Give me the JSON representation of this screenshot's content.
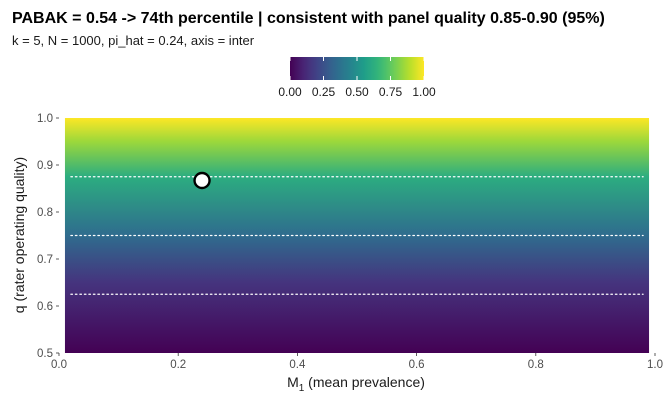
{
  "chart_data": {
    "type": "heatmap",
    "title": "PABAK = 0.54 -> 74th percentile  |  consistent with panel quality 0.85-0.90 (95%)",
    "subtitle": "k = 5, N = 1000, pi_hat = 0.24, axis = inter",
    "xlabel_main": "M",
    "xlabel_sub": "1",
    "xlabel_rest": " (mean prevalence)",
    "ylabel": "q (rater operating quality)",
    "xlim": [
      0.0,
      1.0
    ],
    "ylim": [
      0.5,
      1.0
    ],
    "x_ticks": [
      {
        "value": 0.0,
        "label": "0.0"
      },
      {
        "value": 0.2,
        "label": "0.2"
      },
      {
        "value": 0.4,
        "label": "0.4"
      },
      {
        "value": 0.6,
        "label": "0.6"
      },
      {
        "value": 0.8,
        "label": "0.8"
      },
      {
        "value": 1.0,
        "label": "1.0"
      }
    ],
    "y_ticks": [
      {
        "value": 0.5,
        "label": "0.5"
      },
      {
        "value": 0.6,
        "label": "0.6"
      },
      {
        "value": 0.7,
        "label": "0.7"
      },
      {
        "value": 0.8,
        "label": "0.8"
      },
      {
        "value": 0.9,
        "label": "0.9"
      },
      {
        "value": 1.0,
        "label": "1.0"
      }
    ],
    "heat_field": {
      "x_range": [
        0.01,
        0.99
      ],
      "y_range": [
        0.5,
        1.0
      ],
      "varies_along": "y",
      "value_at_y": [
        {
          "y": 0.5,
          "v": 0.0
        },
        {
          "y": 0.65,
          "v": 0.15
        },
        {
          "y": 0.75,
          "v": 0.35
        },
        {
          "y": 0.875,
          "v": 0.62
        },
        {
          "y": 0.95,
          "v": 0.85
        },
        {
          "y": 1.0,
          "v": 1.0
        }
      ]
    },
    "reference_lines_y": [
      0.625,
      0.75,
      0.875
    ],
    "reference_line_x_range": [
      0.02,
      0.98
    ],
    "point": {
      "x": 0.24,
      "y": 0.867
    },
    "colorbar": {
      "colormap": "viridis",
      "min": 0.0,
      "max": 1.0,
      "ticks": [
        {
          "value": 0.0,
          "label": "0.00"
        },
        {
          "value": 0.25,
          "label": "0.25"
        },
        {
          "value": 0.5,
          "label": "0.50"
        },
        {
          "value": 0.75,
          "label": "0.75"
        },
        {
          "value": 1.0,
          "label": "1.00"
        }
      ]
    },
    "grid": false,
    "legend_position": "top"
  },
  "colors": {
    "viridis_stops": [
      "#440154",
      "#482878",
      "#3e4989",
      "#31688e",
      "#26828e",
      "#1f9e89",
      "#35b779",
      "#6ece58",
      "#b5de2b",
      "#fde725"
    ],
    "reference_line": "#ffffff",
    "point_fill": "#ffffff",
    "point_stroke": "#000000",
    "tick_text": "#4d4d4d",
    "axis_title": "#1a1a1a"
  }
}
